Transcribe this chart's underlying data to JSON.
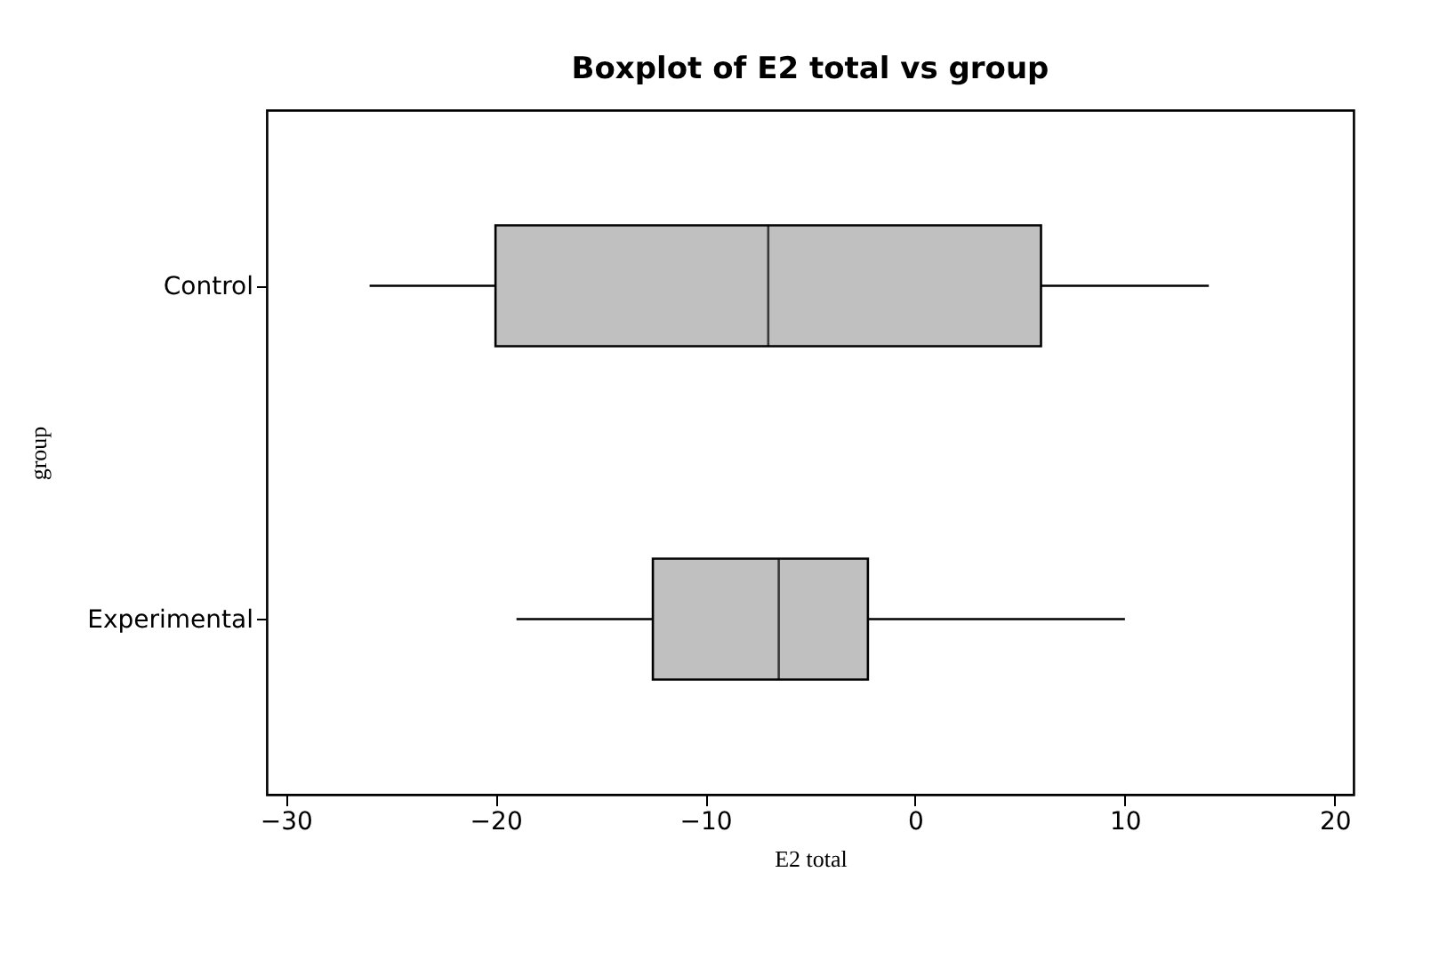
{
  "chart_data": {
    "type": "box",
    "title": "Boxplot of E2 total vs group",
    "xlabel": "E2 total",
    "ylabel": "group",
    "orientation": "horizontal",
    "categories": [
      "Control",
      "Experimental"
    ],
    "color": "#c0c0c0",
    "boxes": [
      {
        "low": -26,
        "q1": -20,
        "median": -7,
        "q3": 6,
        "high": 14
      },
      {
        "low": -19,
        "q1": -12.5,
        "median": -6.5,
        "q3": -2.25,
        "high": 10
      }
    ],
    "xlim": [
      -30.9,
      20.9
    ],
    "xticks": [
      -30,
      -20,
      -10,
      0,
      10,
      20
    ],
    "grid": false
  }
}
